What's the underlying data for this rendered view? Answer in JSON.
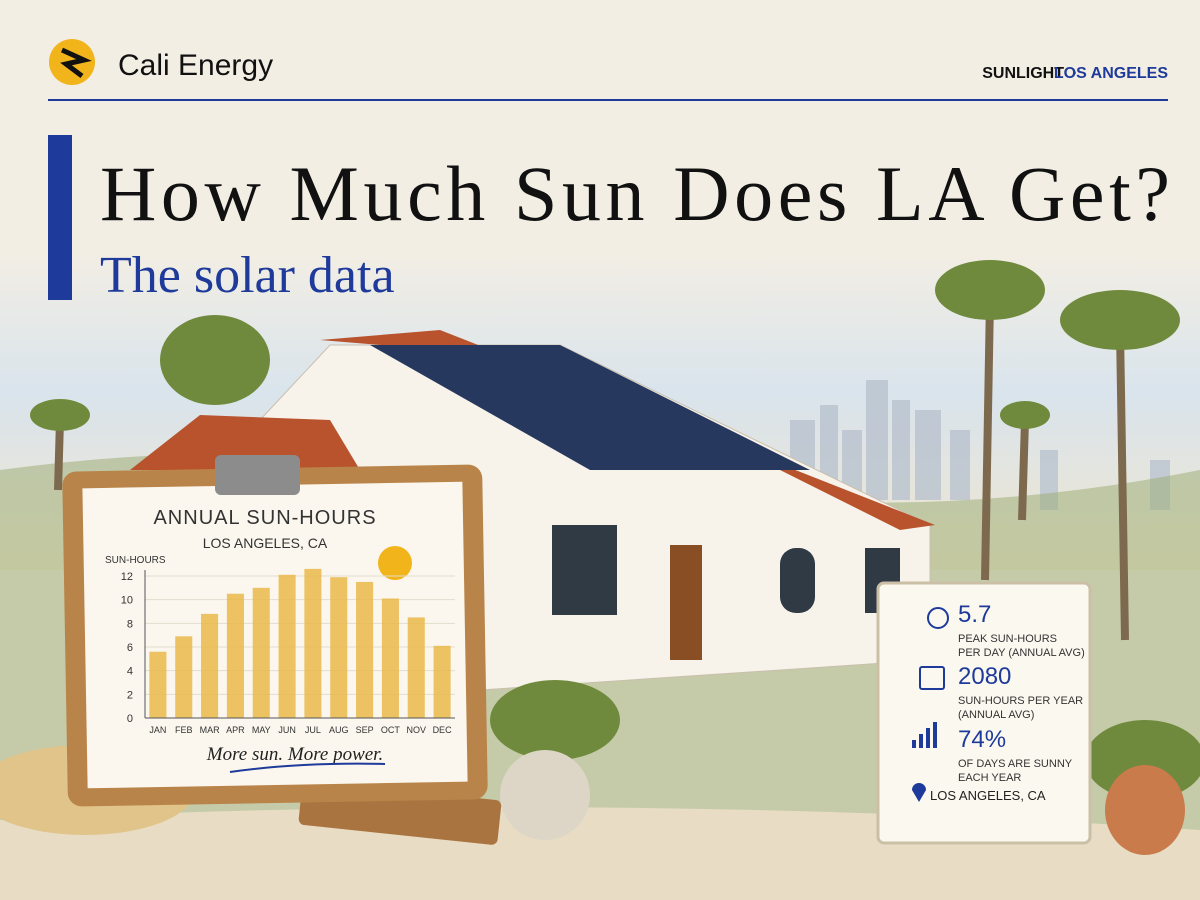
{
  "header": {
    "brand": "Cali Energy",
    "section": "SUNLIGHT",
    "separator": "·",
    "location": "LOS ANGELES"
  },
  "headline": {
    "title": "How Much Sun Does LA Get?",
    "subtitle": "The solar data"
  },
  "chart_data": {
    "type": "bar",
    "title": "ANNUAL SUN-HOURS",
    "subtitle": "LOS ANGELES, CA",
    "y_label": "SUN-HOURS",
    "categories": [
      "JAN",
      "FEB",
      "MAR",
      "APR",
      "MAY",
      "JUN",
      "JUL",
      "AUG",
      "SEP",
      "OCT",
      "NOV",
      "DEC"
    ],
    "values": [
      5.6,
      6.9,
      8.8,
      10.5,
      11.0,
      12.1,
      12.6,
      11.9,
      11.5,
      10.1,
      8.5,
      6.1
    ],
    "color": "#e9b949",
    "ylim": [
      0,
      12
    ],
    "yticks": [
      0,
      2,
      4,
      6,
      8,
      10,
      12
    ],
    "grid": true,
    "caption": "More sun. More power."
  },
  "stats": [
    {
      "value": "5.7",
      "label": "PEAK SUN-HOURS",
      "note": "PER DAY (ANNUAL AVG)"
    },
    {
      "value": "2080",
      "label": "SUN-HOURS PER YEAR",
      "note": "(ANNUAL AVG)"
    },
    {
      "value": "74%",
      "label": "OF DAYS ARE SUNNY",
      "note": "EACH YEAR"
    }
  ],
  "stats_location": "LOS ANGELES, CA"
}
